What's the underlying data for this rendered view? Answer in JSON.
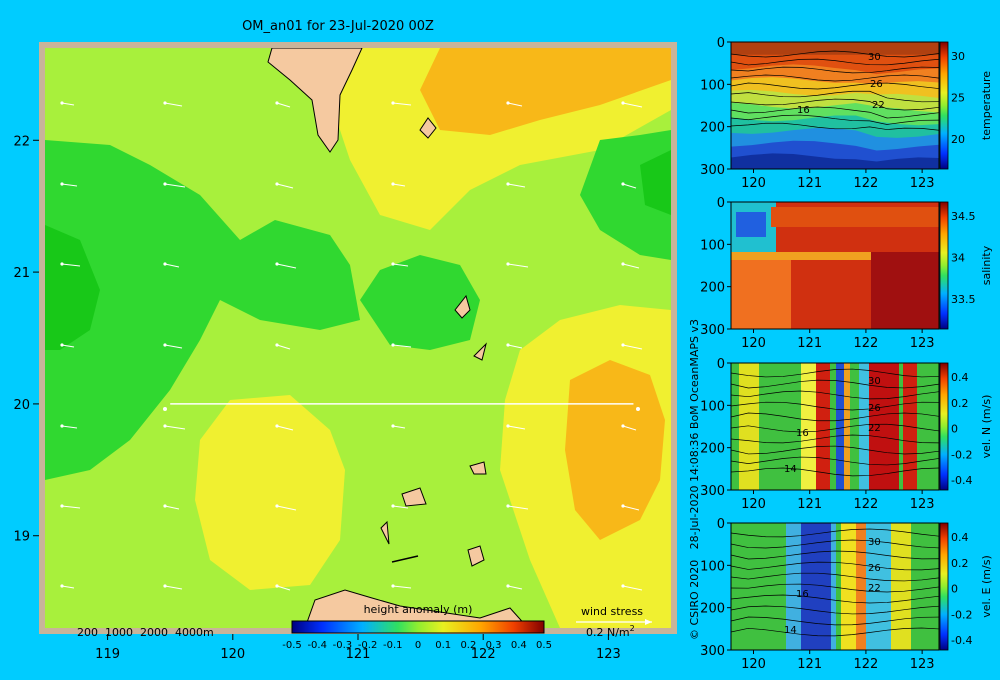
{
  "colors": {
    "background": "#00ccff",
    "frame": "#c8b49a",
    "land": "#f5c9a0"
  },
  "main_map": {
    "title": "OM_an01 for 23-Jul-2020 00Z",
    "x_ticks": [
      "119",
      "120",
      "121",
      "122",
      "123"
    ],
    "y_ticks": [
      "22",
      "21",
      "20",
      "19"
    ],
    "depth_legend": "200  1000  2000  4000m",
    "colorbar_label": "height anomaly (m)",
    "colorbar_ticks": [
      "-0.5",
      "-0.4",
      "-0.3",
      "-0.2",
      "-0.1",
      "0",
      "0.1",
      "0.2",
      "0.3",
      "0.4",
      "0.5"
    ],
    "wind_label": "wind stress",
    "wind_scale": "0.2 N/m",
    "wind_scale_sup": "2"
  },
  "credit": "© CSIRO 2020   28-Jul-2020 14:08:36 BoM OceanMAPS v3",
  "chart_data": [
    {
      "type": "heatmap",
      "title": "OM_an01 for 23-Jul-2020 00Z",
      "xlabel": "",
      "ylabel": "",
      "x_range": [
        118.5,
        123.5
      ],
      "y_range": [
        18.3,
        22.7
      ],
      "x_ticks": [
        119,
        120,
        121,
        122,
        123
      ],
      "y_ticks": [
        22,
        21,
        20,
        19
      ],
      "colorbar": {
        "label": "height anomaly (m)",
        "range": [
          -0.5,
          0.5
        ],
        "ticks": [
          -0.5,
          -0.4,
          -0.3,
          -0.2,
          -0.1,
          0,
          0.1,
          0.2,
          0.3,
          0.4,
          0.5
        ]
      },
      "section_line": {
        "lat": 20.0,
        "lon_from": 119.5,
        "lon_to": 123.2
      }
    },
    {
      "type": "heatmap",
      "ylabel": "temperature",
      "x_ticks": [
        120,
        121,
        122,
        123
      ],
      "y_ticks": [
        0,
        100,
        200,
        300
      ],
      "colorbar_ticks": [
        30,
        25,
        20
      ],
      "contour_labels": [
        "30",
        "26",
        "22",
        "16"
      ]
    },
    {
      "type": "heatmap",
      "ylabel": "salinity",
      "x_ticks": [
        120,
        121,
        122,
        123
      ],
      "y_ticks": [
        0,
        100,
        200,
        300
      ],
      "colorbar_ticks": [
        34.5,
        34,
        33.5
      ]
    },
    {
      "type": "heatmap",
      "ylabel": "vel. N (m/s)",
      "x_ticks": [
        120,
        121,
        122,
        123
      ],
      "y_ticks": [
        0,
        100,
        200,
        300
      ],
      "colorbar_ticks": [
        0.4,
        0.2,
        0,
        -0.2,
        -0.4
      ],
      "contour_labels": [
        "30",
        "26",
        "22",
        "16",
        "14"
      ]
    },
    {
      "type": "heatmap",
      "ylabel": "vel. E (m/s)",
      "x_ticks": [
        120,
        121,
        122,
        123
      ],
      "y_ticks": [
        0,
        100,
        200,
        300
      ],
      "colorbar_ticks": [
        0.4,
        0.2,
        0,
        -0.2,
        -0.4
      ],
      "contour_labels": [
        "30",
        "26",
        "22",
        "16",
        "14"
      ]
    }
  ],
  "section_panels": [
    {
      "ylabel": "temperature",
      "x_ticks": [
        "120",
        "121",
        "122",
        "123"
      ],
      "y_ticks": [
        "0",
        "100",
        "200",
        "300"
      ],
      "cb_ticks": [
        "30",
        "25",
        "20"
      ],
      "contour_labels": [
        "30",
        "26",
        "22",
        "16"
      ]
    },
    {
      "ylabel": "salinity",
      "x_ticks": [
        "120",
        "121",
        "122",
        "123"
      ],
      "y_ticks": [
        "0",
        "100",
        "200",
        "300"
      ],
      "cb_ticks": [
        "34.5",
        "34",
        "33.5"
      ],
      "contour_labels": []
    },
    {
      "ylabel": "vel. N (m/s)",
      "x_ticks": [
        "120",
        "121",
        "122",
        "123"
      ],
      "y_ticks": [
        "0",
        "100",
        "200",
        "300"
      ],
      "cb_ticks": [
        "0.4",
        "0.2",
        "0",
        "-0.2",
        "-0.4"
      ],
      "contour_labels": [
        "30",
        "26",
        "22",
        "16",
        "14"
      ]
    },
    {
      "ylabel": "vel. E (m/s)",
      "x_ticks": [
        "120",
        "121",
        "122",
        "123"
      ],
      "y_ticks": [
        "0",
        "100",
        "200",
        "300"
      ],
      "cb_ticks": [
        "0.4",
        "0.2",
        "0",
        "-0.2",
        "-0.4"
      ],
      "contour_labels": [
        "30",
        "26",
        "22",
        "16",
        "14"
      ]
    }
  ]
}
